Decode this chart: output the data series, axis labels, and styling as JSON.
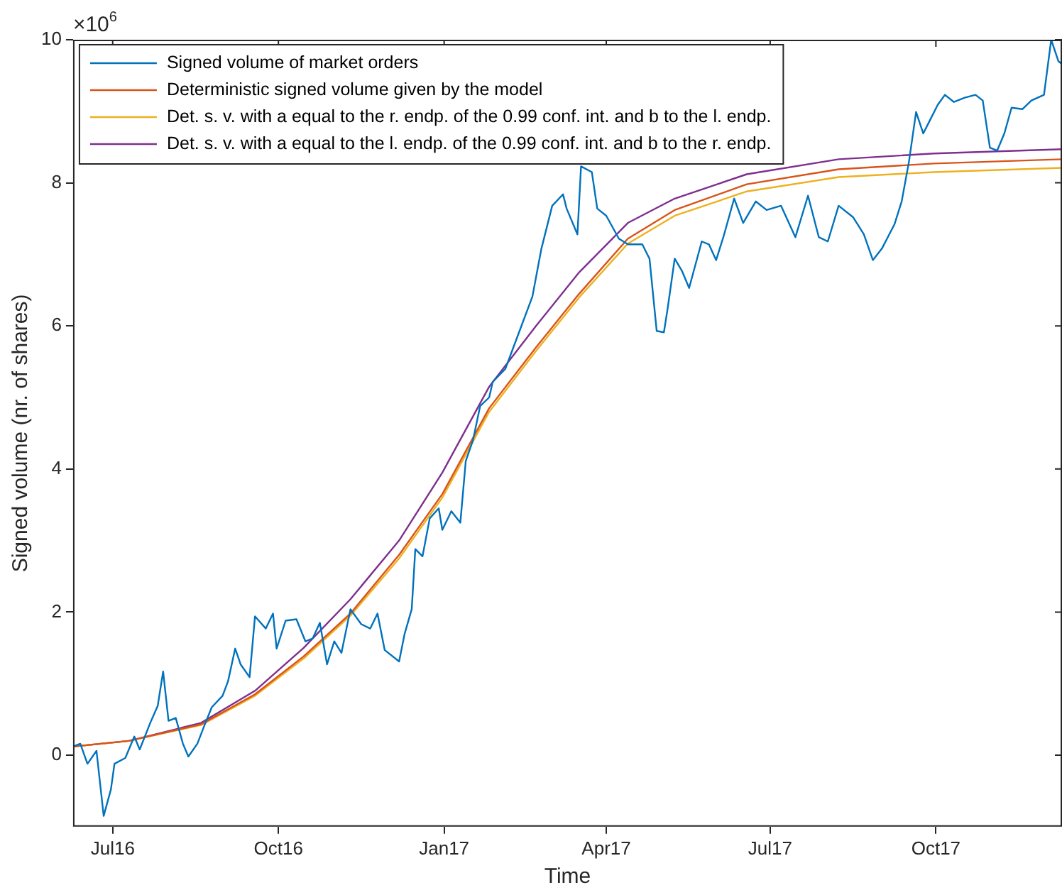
{
  "chart_data": {
    "type": "line",
    "xlabel": "Time",
    "ylabel": "Signed volume (nr. of shares)",
    "annotations": [
      "×10$^{6}$"
    ],
    "xlim": [
      "2016-06-09",
      "2017-12-10"
    ],
    "xticks": [
      {
        "value": "2016-07-01",
        "label": "Jul16"
      },
      {
        "value": "2016-10-01",
        "label": "Oct16"
      },
      {
        "value": "2017-01-01",
        "label": "Jan17"
      },
      {
        "value": "2017-04-01",
        "label": "Apr17"
      },
      {
        "value": "2017-07-01",
        "label": "Jul17"
      },
      {
        "value": "2017-10-01",
        "label": "Oct17"
      }
    ],
    "ylim": [
      -1,
      10
    ],
    "yticks": [
      0,
      2,
      4,
      6,
      8,
      10
    ],
    "grid": false,
    "legend": "top left",
    "marker": "none",
    "line_style": "solid",
    "series": [
      {
        "name": "Signed volume of market orders",
        "color": "#0072bd",
        "x": [
          "2016-06-09",
          "2016-06-13",
          "2016-06-17",
          "2016-06-22",
          "2016-06-26",
          "2016-06-30",
          "2016-07-02",
          "2016-07-08",
          "2016-07-13",
          "2016-07-16",
          "2016-07-22",
          "2016-07-26",
          "2016-07-29",
          "2016-08-01",
          "2016-08-05",
          "2016-08-09",
          "2016-08-12",
          "2016-08-17",
          "2016-08-21",
          "2016-08-25",
          "2016-08-31",
          "2016-09-03",
          "2016-09-07",
          "2016-09-10",
          "2016-09-15",
          "2016-09-18",
          "2016-09-24",
          "2016-09-28",
          "2016-09-30",
          "2016-10-05",
          "2016-10-11",
          "2016-10-16",
          "2016-10-20",
          "2016-10-24",
          "2016-10-28",
          "2016-11-01",
          "2016-11-05",
          "2016-11-10",
          "2016-11-16",
          "2016-11-21",
          "2016-11-25",
          "2016-11-29",
          "2016-12-07",
          "2016-12-10",
          "2016-12-14",
          "2016-12-16",
          "2016-12-20",
          "2016-12-24",
          "2016-12-29",
          "2016-12-31",
          "2017-01-05",
          "2017-01-10",
          "2017-01-13",
          "2017-01-17",
          "2017-01-21",
          "2017-01-26",
          "2017-01-28",
          "2017-02-04",
          "2017-02-08",
          "2017-02-19",
          "2017-02-24",
          "2017-03-02",
          "2017-03-08",
          "2017-03-10",
          "2017-03-16",
          "2017-03-18",
          "2017-03-24",
          "2017-03-27",
          "2017-04-01",
          "2017-04-08",
          "2017-04-13",
          "2017-04-21",
          "2017-04-25",
          "2017-04-29",
          "2017-05-03",
          "2017-05-05",
          "2017-05-09",
          "2017-05-13",
          "2017-05-17",
          "2017-05-24",
          "2017-05-28",
          "2017-06-01",
          "2017-06-05",
          "2017-06-11",
          "2017-06-16",
          "2017-06-23",
          "2017-06-29",
          "2017-07-07",
          "2017-07-15",
          "2017-07-22",
          "2017-07-28",
          "2017-08-02",
          "2017-08-08",
          "2017-08-16",
          "2017-08-22",
          "2017-08-27",
          "2017-09-01",
          "2017-09-08",
          "2017-09-12",
          "2017-09-16",
          "2017-09-20",
          "2017-09-24",
          "2017-09-28",
          "2017-10-02",
          "2017-10-06",
          "2017-10-11",
          "2017-10-17",
          "2017-10-23",
          "2017-10-27",
          "2017-10-31",
          "2017-11-04",
          "2017-11-08",
          "2017-11-12",
          "2017-11-18",
          "2017-11-23",
          "2017-11-30",
          "2017-12-04",
          "2017-12-08",
          "2017-12-10"
        ],
        "values": [
          0.12,
          0.16,
          -0.12,
          0.06,
          -0.85,
          -0.48,
          -0.12,
          -0.04,
          0.26,
          0.08,
          0.46,
          0.69,
          1.17,
          0.48,
          0.52,
          0.16,
          -0.02,
          0.16,
          0.42,
          0.67,
          0.83,
          1.03,
          1.49,
          1.27,
          1.09,
          1.94,
          1.77,
          1.98,
          1.49,
          1.88,
          1.9,
          1.59,
          1.63,
          1.85,
          1.27,
          1.59,
          1.43,
          2.04,
          1.83,
          1.77,
          1.98,
          1.47,
          1.31,
          1.69,
          2.04,
          2.88,
          2.78,
          3.31,
          3.45,
          3.15,
          3.41,
          3.25,
          4.11,
          4.4,
          4.88,
          5.0,
          5.22,
          5.4,
          5.67,
          6.41,
          7.08,
          7.68,
          7.84,
          7.64,
          7.28,
          8.23,
          8.15,
          7.64,
          7.54,
          7.22,
          7.14,
          7.14,
          6.94,
          5.93,
          5.91,
          6.23,
          6.94,
          6.77,
          6.53,
          7.18,
          7.14,
          6.92,
          7.24,
          7.78,
          7.44,
          7.74,
          7.62,
          7.68,
          7.24,
          7.82,
          7.24,
          7.18,
          7.68,
          7.52,
          7.28,
          6.92,
          7.08,
          7.42,
          7.74,
          8.29,
          8.99,
          8.69,
          8.89,
          9.09,
          9.23,
          9.13,
          9.19,
          9.23,
          9.15,
          8.49,
          8.45,
          8.69,
          9.05,
          9.03,
          9.15,
          9.23,
          10.0,
          9.7,
          9.66
        ]
      },
      {
        "name": "Deterministic signed volume given by the model",
        "color": "#d95319",
        "x": [
          "2016-06-09",
          "2016-07-10",
          "2016-08-19",
          "2016-09-18",
          "2016-10-15",
          "2016-11-10",
          "2016-12-07",
          "2016-12-31",
          "2017-01-26",
          "2017-02-21",
          "2017-03-17",
          "2017-04-13",
          "2017-05-09",
          "2017-06-18",
          "2017-08-08",
          "2017-09-30",
          "2017-12-10"
        ],
        "values": [
          0.12,
          0.2,
          0.43,
          0.85,
          1.38,
          1.98,
          2.8,
          3.65,
          4.85,
          5.7,
          6.45,
          7.22,
          7.62,
          7.98,
          8.19,
          8.27,
          8.33
        ]
      },
      {
        "name": "Det. s. v. with a equal to the r. endp. of the 0.99 conf. int. and b to the l. endp.",
        "color": "#edb120",
        "x": [
          "2016-06-09",
          "2016-07-10",
          "2016-08-19",
          "2016-09-18",
          "2016-10-15",
          "2016-11-10",
          "2016-12-07",
          "2016-12-31",
          "2017-01-26",
          "2017-02-21",
          "2017-03-17",
          "2017-04-13",
          "2017-05-09",
          "2017-06-18",
          "2017-08-08",
          "2017-09-30",
          "2017-12-10"
        ],
        "values": [
          0.12,
          0.2,
          0.42,
          0.83,
          1.35,
          1.95,
          2.75,
          3.6,
          4.8,
          5.65,
          6.4,
          7.15,
          7.54,
          7.88,
          8.08,
          8.15,
          8.21
        ]
      },
      {
        "name": "Det. s. v. with a equal to the l. endp. of the 0.99 conf. int. and b to the r. endp.",
        "color": "#7e2f8e",
        "x": [
          "2016-06-09",
          "2016-07-10",
          "2016-08-19",
          "2016-09-18",
          "2016-10-15",
          "2016-11-10",
          "2016-12-07",
          "2016-12-31",
          "2017-01-26",
          "2017-02-21",
          "2017-03-17",
          "2017-04-13",
          "2017-05-09",
          "2017-06-18",
          "2017-08-08",
          "2017-09-30",
          "2017-12-10"
        ],
        "values": [
          0.12,
          0.2,
          0.45,
          0.9,
          1.5,
          2.18,
          3.0,
          3.95,
          5.15,
          6.0,
          6.75,
          7.44,
          7.78,
          8.12,
          8.33,
          8.41,
          8.47
        ]
      }
    ]
  }
}
